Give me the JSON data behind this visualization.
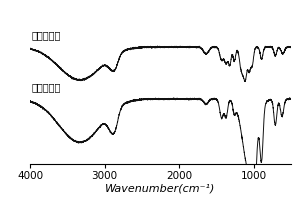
{
  "xlabel": "Wavenumber(cm⁻¹)",
  "label_top": "改性后维素",
  "label_bottom": "改性前维素",
  "xticks": [
    4000,
    3000,
    2000,
    1000
  ],
  "xticklabels": [
    "4000",
    "3000",
    "2000",
    "1000"
  ],
  "background_color": "#ffffff",
  "line_color": "#111111",
  "linewidth": 0.7
}
